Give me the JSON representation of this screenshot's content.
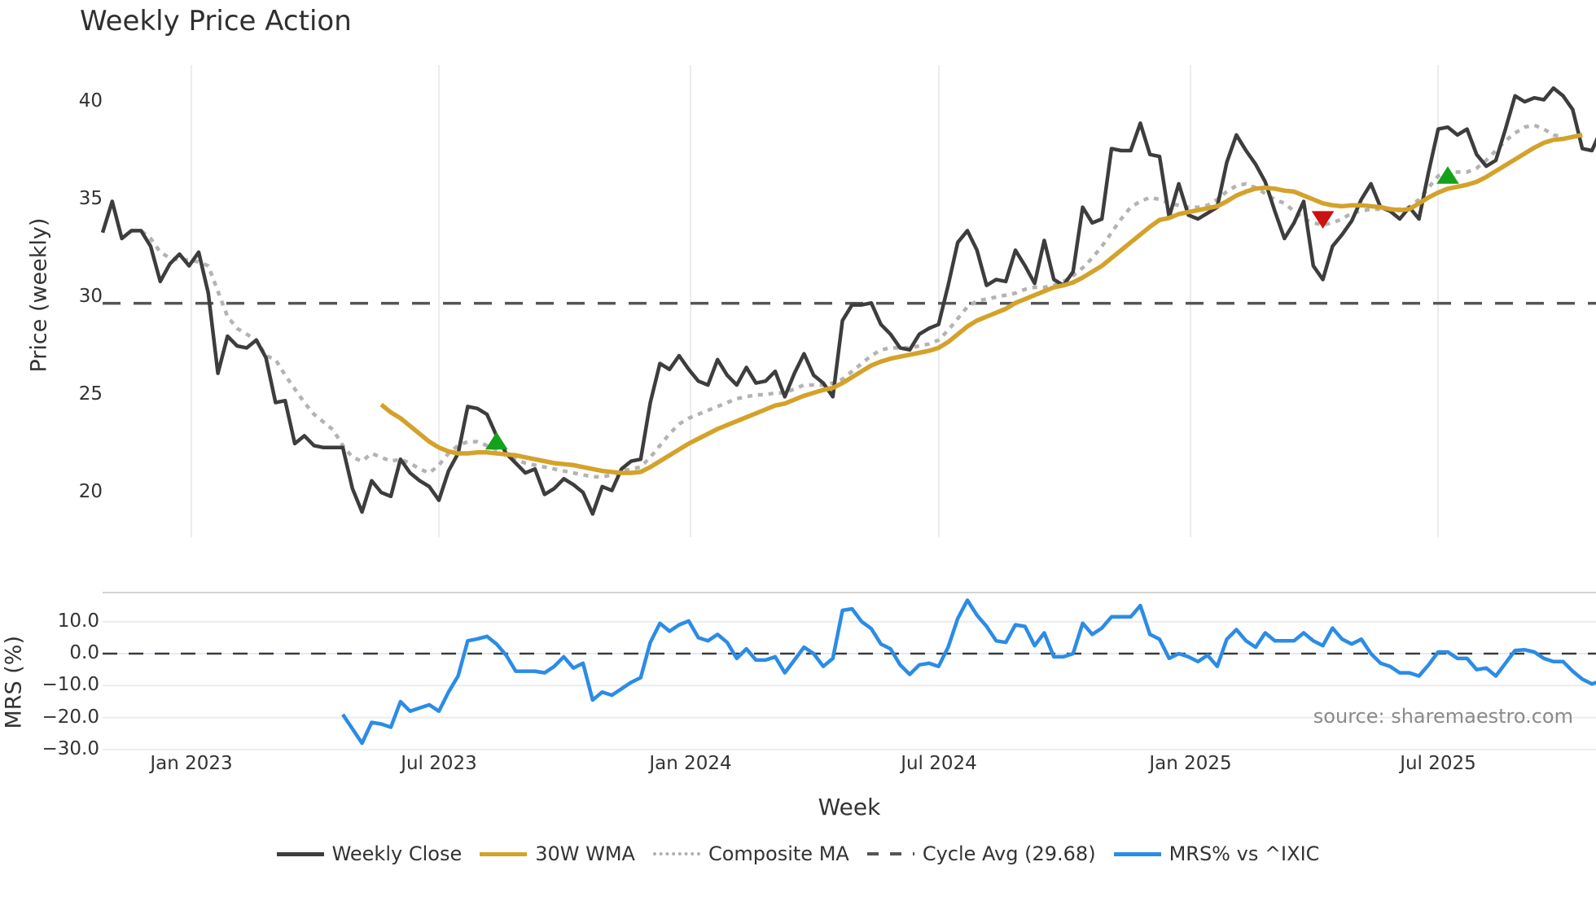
{
  "title": "Weekly Price Action",
  "price_panel": {
    "ylabel": "Price (weekly)",
    "yticks": [
      "40",
      "35",
      "30",
      "25",
      "20"
    ]
  },
  "mrs_panel": {
    "ylabel": "MRS (%)",
    "yticks": [
      "10.0",
      "0.0",
      "−10.0",
      "−20.0",
      "−30.0"
    ]
  },
  "xaxis": {
    "label": "Week",
    "ticks": [
      "Jan 2023",
      "Jul 2023",
      "Jan 2024",
      "Jul 2024",
      "Jan 2025",
      "Jul 2025"
    ]
  },
  "source": "source: sharemaestro.com",
  "legend": [
    {
      "label": "Weekly Close",
      "color": "#3d3d3d",
      "style": "solid"
    },
    {
      "label": "30W WMA",
      "color": "#d4a22a",
      "style": "solid"
    },
    {
      "label": "Composite MA",
      "color": "#b0b0b0",
      "style": "dotted"
    },
    {
      "label": "Cycle Avg (29.68)",
      "color": "#555555",
      "style": "dashed"
    },
    {
      "label": "MRS% vs ^IXIC",
      "color": "#2b8ce6",
      "style": "solid"
    }
  ],
  "chart_data": {
    "type": "line",
    "title": "Weekly Price Action",
    "xlabel": "Week",
    "x_ticks": [
      "Jan 2023",
      "Jul 2023",
      "Jan 2024",
      "Jul 2024",
      "Jan 2025",
      "Jul 2025"
    ],
    "x_start": "late Oct 2022",
    "x_end": "late Oct 2025",
    "panels": [
      {
        "name": "price",
        "ylabel": "Price (weekly)",
        "ylim": [
          17.5,
          42
        ],
        "yticks": [
          20,
          25,
          30,
          35,
          40
        ],
        "grid": "vertical",
        "series": [
          {
            "name": "Weekly Close",
            "start_index": 0,
            "values": [
              33.3,
              34.9,
              33.0,
              33.4,
              33.4,
              32.6,
              30.8,
              31.7,
              32.2,
              31.6,
              32.3,
              30.2,
              26.1,
              28.0,
              27.5,
              27.4,
              27.8,
              26.9,
              24.6,
              24.7,
              22.5,
              22.9,
              22.4,
              22.3,
              22.3,
              22.3,
              20.2,
              19.0,
              20.6,
              20.0,
              19.8,
              21.7,
              21.0,
              20.6,
              20.3,
              19.6,
              21.1,
              22.0,
              24.4,
              24.3,
              24.0,
              22.9,
              22.0,
              21.5,
              21.0,
              21.2,
              19.9,
              20.2,
              20.7,
              20.4,
              20.0,
              18.9,
              20.3,
              20.1,
              21.2,
              21.6,
              21.7,
              24.6,
              26.6,
              26.3,
              27.0,
              26.3,
              25.7,
              25.5,
              26.8,
              26.0,
              25.5,
              26.4,
              25.6,
              25.7,
              26.2,
              24.9,
              26.1,
              27.1,
              26.0,
              25.6,
              24.9,
              28.8,
              29.6,
              29.6,
              29.7,
              28.6,
              28.1,
              27.4,
              27.3,
              28.1,
              28.4,
              28.6,
              30.6,
              32.8,
              33.4,
              32.4,
              30.6,
              30.9,
              30.8,
              32.4,
              31.6,
              30.7,
              32.9,
              30.9,
              30.6,
              31.3,
              34.6,
              33.8,
              34.0,
              37.6,
              37.5,
              37.5,
              38.9,
              37.3,
              37.2,
              34.1,
              35.8,
              34.2,
              34.0,
              34.3,
              34.6,
              36.9,
              38.3,
              37.5,
              36.8,
              35.9,
              34.4,
              33.0,
              33.8,
              34.9,
              31.6,
              30.9,
              32.6,
              33.2,
              33.9,
              35.0,
              35.8,
              34.6,
              34.4,
              34.0,
              34.6,
              34.0,
              36.4,
              38.6,
              38.7,
              38.3,
              38.6,
              37.3,
              36.7,
              37.0,
              38.6,
              40.3,
              40.0,
              40.2,
              40.1,
              40.7,
              40.3,
              39.6,
              37.6,
              37.5,
              38.6
            ]
          },
          {
            "name": "30W WMA",
            "start_index": 29,
            "values": [
              24.5,
              24.1,
              23.8,
              23.4,
              23.0,
              22.6,
              22.3,
              22.1,
              22.0,
              22.0,
              22.05,
              22.05,
              22.0,
              21.95,
              21.9,
              21.8,
              21.7,
              21.6,
              21.5,
              21.45,
              21.4,
              21.3,
              21.2,
              21.1,
              21.05,
              21.0,
              21.0,
              21.05,
              21.3,
              21.6,
              21.9,
              22.2,
              22.5,
              22.75,
              23.0,
              23.25,
              23.45,
              23.65,
              23.85,
              24.05,
              24.25,
              24.45,
              24.55,
              24.75,
              24.95,
              25.1,
              25.25,
              25.35,
              25.6,
              25.9,
              26.2,
              26.5,
              26.7,
              26.85,
              26.95,
              27.05,
              27.15,
              27.25,
              27.4,
              27.7,
              28.1,
              28.5,
              28.8,
              29.0,
              29.2,
              29.4,
              29.7,
              29.9,
              30.1,
              30.3,
              30.5,
              30.6,
              30.75,
              31.0,
              31.3,
              31.6,
              32.0,
              32.4,
              32.8,
              33.2,
              33.6,
              33.95,
              34.05,
              34.25,
              34.35,
              34.45,
              34.55,
              34.65,
              34.9,
              35.2,
              35.4,
              35.55,
              35.6,
              35.55,
              35.45,
              35.4,
              35.2,
              35.0,
              34.8,
              34.7,
              34.65,
              34.7,
              34.7,
              34.65,
              34.6,
              34.5,
              34.45,
              34.5,
              34.8,
              35.1,
              35.35,
              35.55,
              35.65,
              35.75,
              35.9,
              36.15,
              36.45,
              36.75,
              37.05,
              37.35,
              37.65,
              37.9,
              38.05,
              38.1,
              38.2,
              38.3
            ]
          },
          {
            "name": "Composite MA",
            "start_index": 3,
            "values": [
              33.4,
              33.4,
              33.0,
              32.3,
              32.0,
              31.9,
              31.9,
              31.8,
              31.6,
              30.3,
              29.0,
              28.4,
              28.1,
              27.8,
              27.0,
              26.8,
              26.0,
              25.3,
              24.6,
              24.0,
              23.6,
              23.2,
              22.4,
              21.8,
              21.6,
              22.0,
              21.8,
              21.6,
              21.7,
              21.5,
              21.2,
              21.0,
              21.4,
              22.0,
              22.4,
              22.6,
              22.6,
              22.4,
              22.2,
              21.9,
              21.7,
              21.5,
              21.4,
              21.3,
              21.2,
              21.1,
              21.0,
              20.9,
              20.8,
              20.8,
              20.9,
              21.1,
              21.2,
              21.3,
              21.8,
              22.4,
              23.0,
              23.5,
              23.8,
              24.0,
              24.2,
              24.4,
              24.6,
              24.8,
              24.9,
              25.0,
              25.0,
              25.1,
              25.1,
              25.3,
              25.5,
              25.5,
              25.5,
              25.6,
              25.8,
              26.2,
              26.6,
              27.0,
              27.3,
              27.4,
              27.4,
              27.4,
              27.5,
              27.6,
              27.8,
              28.3,
              28.9,
              29.5,
              29.8,
              29.9,
              30.0,
              30.1,
              30.2,
              30.4,
              30.5,
              30.5,
              30.6,
              30.8,
              31.1,
              31.5,
              32.0,
              32.6,
              33.3,
              34.0,
              34.6,
              34.9,
              35.1,
              35.0,
              34.8,
              34.7,
              34.6,
              34.6,
              34.7,
              35.0,
              35.4,
              35.7,
              35.8,
              35.6,
              35.3,
              35.0,
              34.8,
              34.4,
              34.0,
              33.8,
              33.7,
              33.8,
              34.0,
              34.3,
              34.4,
              34.5,
              34.5,
              34.5,
              34.5,
              34.6,
              35.0,
              35.6,
              36.2,
              36.4,
              36.4,
              36.4,
              36.6,
              37.0,
              37.5,
              38.0,
              38.4,
              38.7,
              38.8,
              38.6,
              38.3,
              38.2
            ]
          },
          {
            "name": "Cycle Avg (29.68)",
            "constant": 29.68
          }
        ],
        "markers": [
          {
            "type": "buy",
            "shape": "triangle-up",
            "color": "#16a11b",
            "index": 41,
            "value": 22.6
          },
          {
            "type": "sell",
            "shape": "triangle-down",
            "color": "#cc1111",
            "index": 127,
            "value": 34.0
          },
          {
            "type": "buy",
            "shape": "triangle-up",
            "color": "#16a11b",
            "index": 140,
            "value": 36.2
          }
        ]
      },
      {
        "name": "mrs",
        "ylabel": "MRS (%)",
        "ylim": [
          -31,
          19
        ],
        "yticks": [
          -30,
          -20,
          -10,
          0,
          10
        ],
        "grid": "horizontal",
        "series": [
          {
            "name": "MRS% vs ^IXIC",
            "start_index": 25,
            "values": [
              -19,
              -23.5,
              -28,
              -21.5,
              -22,
              -23,
              -15,
              -18,
              -17,
              -16,
              -18,
              -12,
              -7,
              4,
              4.6,
              5.4,
              3,
              -0.5,
              -5.5,
              -5.5,
              -5.5,
              -6,
              -4,
              -1,
              -4.5,
              -3,
              -14.5,
              -12,
              -13,
              -11,
              -9,
              -7.5,
              3.5,
              9.5,
              7,
              9,
              10.2,
              5,
              4,
              6,
              3.5,
              -1.5,
              1.5,
              -2,
              -2,
              -1,
              -6,
              -2,
              2,
              0,
              -4,
              -1.5,
              13.5,
              14,
              10,
              7.8,
              3,
              1.5,
              -3.5,
              -6.5,
              -3.5,
              -3,
              -4,
              2,
              11,
              16.7,
              12,
              8.5,
              4,
              3.5,
              9,
              8.5,
              2.5,
              6.5,
              -1,
              -1,
              0,
              9.5,
              6,
              8,
              11.5,
              11.5,
              11.5,
              15,
              6,
              4.5,
              -1.5,
              0,
              -1,
              -2.5,
              -0.5,
              -4,
              4.5,
              7.5,
              4,
              2,
              6.5,
              4,
              4,
              4,
              6.5,
              4,
              2.5,
              8,
              4.5,
              3,
              4.5,
              0,
              -3,
              -4,
              -6,
              -6,
              -7,
              -3.5,
              0.5,
              0.5,
              -1.5,
              -1.5,
              -5,
              -4.5,
              -7,
              -3,
              1,
              1.2,
              0.5,
              -1.5,
              -2.5,
              -2.5,
              -5.5,
              -8,
              -9.5,
              -8.5
            ]
          },
          {
            "name": "zero line",
            "constant": 0,
            "style": "dashed"
          }
        ]
      }
    ],
    "legend": [
      "Weekly Close",
      "30W WMA",
      "Composite MA",
      "Cycle Avg (29.68)",
      "MRS% vs ^IXIC"
    ],
    "legend_position": "bottom",
    "annotation": "source: sharemaestro.com"
  }
}
